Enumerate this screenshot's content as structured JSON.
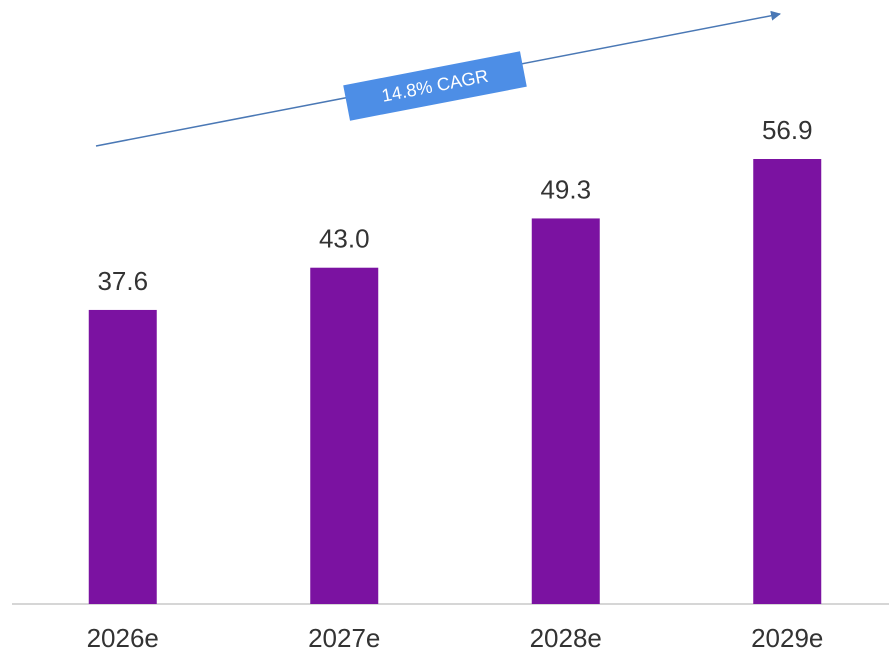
{
  "chart_data": {
    "type": "bar",
    "categories": [
      "2026e",
      "2027e",
      "2028e",
      "2029e"
    ],
    "values": [
      37.6,
      43.0,
      49.3,
      56.9
    ],
    "value_labels": [
      "37.6",
      "43.0",
      "49.3",
      "56.9"
    ],
    "color": "#7b12a1",
    "annotation": "14.8% CAGR",
    "annotation_color": "#4d8ee6",
    "arrow_color": "#4a78b5"
  }
}
